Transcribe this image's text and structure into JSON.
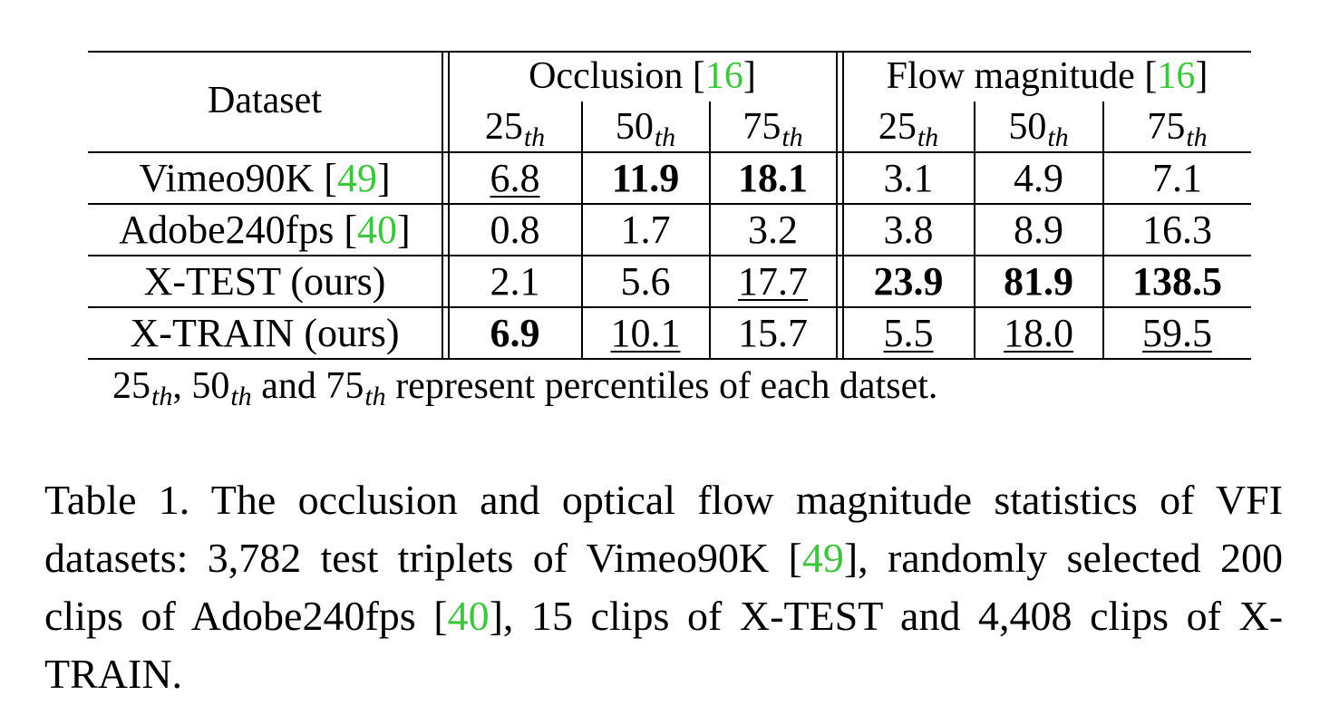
{
  "table": {
    "header": {
      "dataset": "Dataset",
      "occlusion_label": "Occlusion",
      "occlusion_cite": "16",
      "flow_label": "Flow magnitude",
      "flow_cite": "16",
      "percentile_base": [
        "25",
        "50",
        "75"
      ],
      "percentile_sub": "th"
    },
    "rows": [
      {
        "name": "Vimeo90K",
        "cite": "49",
        "cells": [
          {
            "v": "6.8",
            "b": false,
            "u": true
          },
          {
            "v": "11.9",
            "b": true,
            "u": false
          },
          {
            "v": "18.1",
            "b": true,
            "u": false
          },
          {
            "v": "3.1",
            "b": false,
            "u": false
          },
          {
            "v": "4.9",
            "b": false,
            "u": false
          },
          {
            "v": "7.1",
            "b": false,
            "u": false
          }
        ]
      },
      {
        "name": "Adobe240fps",
        "cite": "40",
        "cells": [
          {
            "v": "0.8",
            "b": false,
            "u": false
          },
          {
            "v": "1.7",
            "b": false,
            "u": false
          },
          {
            "v": "3.2",
            "b": false,
            "u": false
          },
          {
            "v": "3.8",
            "b": false,
            "u": false
          },
          {
            "v": "8.9",
            "b": false,
            "u": false
          },
          {
            "v": "16.3",
            "b": false,
            "u": false
          }
        ]
      },
      {
        "name": "X-TEST (ours)",
        "cite": "",
        "cells": [
          {
            "v": "2.1",
            "b": false,
            "u": false
          },
          {
            "v": "5.6",
            "b": false,
            "u": false
          },
          {
            "v": "17.7",
            "b": false,
            "u": true
          },
          {
            "v": "23.9",
            "b": true,
            "u": false
          },
          {
            "v": "81.9",
            "b": true,
            "u": false
          },
          {
            "v": "138.5",
            "b": true,
            "u": false
          }
        ]
      },
      {
        "name": "X-TRAIN (ours)",
        "cite": "",
        "cells": [
          {
            "v": "6.9",
            "b": true,
            "u": false
          },
          {
            "v": "10.1",
            "b": false,
            "u": true
          },
          {
            "v": "15.7",
            "b": false,
            "u": false
          },
          {
            "v": "5.5",
            "b": false,
            "u": true
          },
          {
            "v": "18.0",
            "b": false,
            "u": true
          },
          {
            "v": "59.5",
            "b": false,
            "u": true
          }
        ]
      }
    ],
    "note": {
      "and": "and",
      "rest": "represent percentiles of each datset."
    }
  },
  "caption": {
    "label": "Table 1.",
    "part1": "The occlusion and optical flow magnitude statistics of VFI datasets: 3,782 test triplets of Vimeo90K",
    "cite1": "49",
    "part2": ", randomly selected 200 clips of Adobe240fps",
    "cite2": "40",
    "part3": ", 15 clips of X-TEST and 4,408 clips of X-TRAIN."
  }
}
